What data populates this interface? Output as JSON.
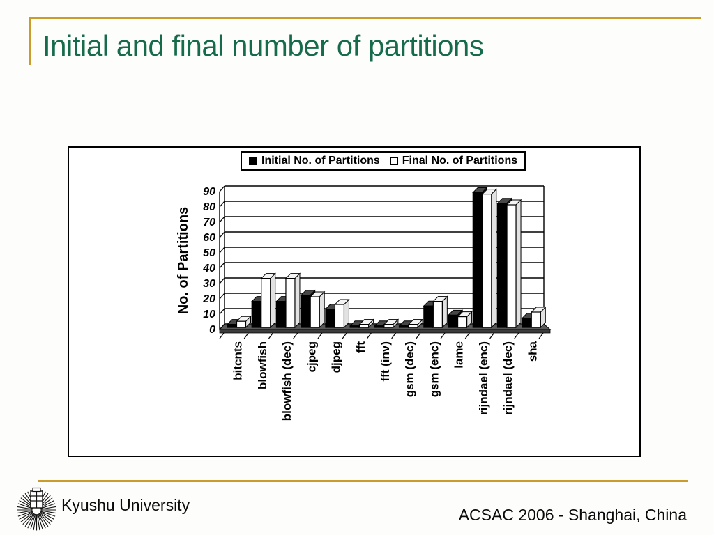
{
  "slide": {
    "title": "Initial and final number of partitions",
    "title_color": "#156B4A",
    "accent_color": "#C99C2B"
  },
  "chart_data": {
    "type": "bar",
    "style": "3d-clustered-column",
    "title": "",
    "xlabel": "",
    "ylabel": "No. of Partitions",
    "ylim": [
      0,
      90
    ],
    "ytick_step": 10,
    "grid": true,
    "legend_position": "top-center",
    "categories": [
      "bitcnts",
      "blowfish",
      "blowfish (dec)",
      "cjpeg",
      "djpeg",
      "fft",
      "fft (inv)",
      "gsm (dec)",
      "gsm (enc)",
      "lame",
      "rijndael (enc)",
      "rijndael (dec)",
      "sha"
    ],
    "series": [
      {
        "name": "Initial No. of Partitions",
        "color": "#000000",
        "values": [
          2,
          17,
          17,
          21,
          12,
          1,
          1,
          1,
          14,
          8,
          88,
          81,
          6
        ]
      },
      {
        "name": "Final No. of Partitions",
        "color": "#FFFFFF",
        "values": [
          4,
          32,
          32,
          20,
          15,
          2,
          2,
          2,
          17,
          7,
          87,
          80,
          10
        ]
      }
    ]
  },
  "footer": {
    "organization": "Kyushu University",
    "event": "ACSAC 2006 - Shanghai, China",
    "logo": "kyushu-university-crest"
  }
}
